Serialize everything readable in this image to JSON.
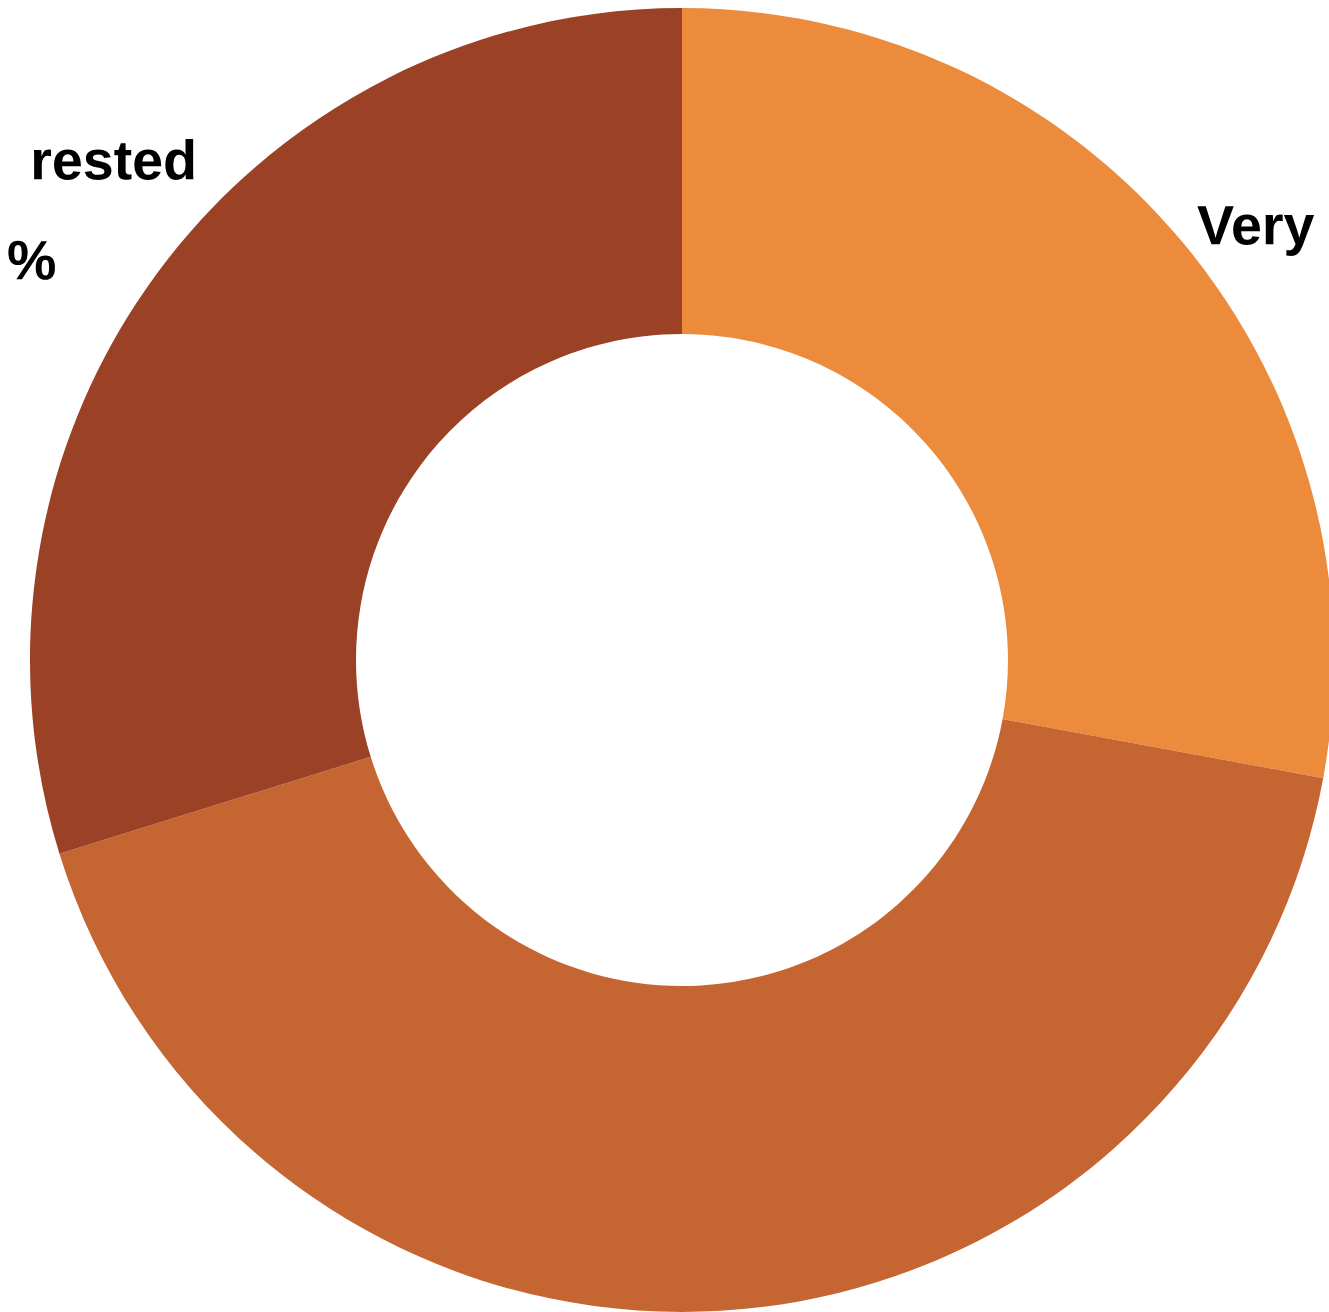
{
  "chart_data": {
    "type": "donut",
    "categories": [
      "Very",
      null,
      "rested"
    ],
    "values": [
      27.9,
      42.3,
      29.8
    ],
    "colors": [
      "#ed8b3c",
      "#c56632",
      "#9b4125"
    ],
    "value_labels": [
      null,
      null,
      "%"
    ]
  }
}
